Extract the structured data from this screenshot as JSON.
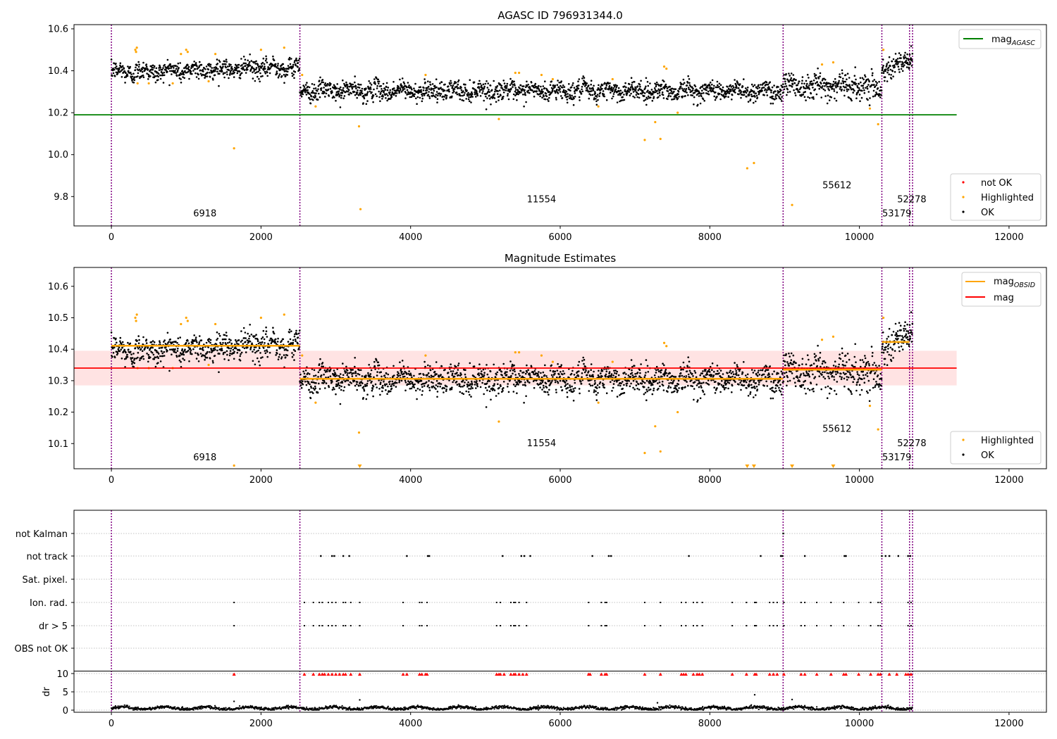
{
  "chart_data": [
    {
      "type": "scatter",
      "title": "AGASC ID 796931344.0",
      "xlim": [
        -500,
        12500
      ],
      "ylim": [
        9.66,
        10.62
      ],
      "x_ticks": [
        0,
        2000,
        4000,
        6000,
        8000,
        10000,
        12000
      ],
      "y_ticks": [
        9.8,
        10.0,
        10.2,
        10.4,
        10.6
      ],
      "grid": false,
      "mag_agasc": 10.19,
      "mag_agasc_x_range": [
        -500,
        11300
      ],
      "obsid_boundaries": [
        0,
        2520,
        8980,
        10300,
        10670,
        10710
      ],
      "segment_labels": [
        {
          "text": "6918",
          "x": 1250,
          "y": 9.705
        },
        {
          "text": "11554",
          "x": 5750,
          "y": 9.772
        },
        {
          "text": "55612",
          "x": 9700,
          "y": 9.84
        },
        {
          "text": "52278",
          "x": 10700,
          "y": 9.772
        },
        {
          "text": "53179",
          "x": 10500,
          "y": 9.705
        }
      ],
      "segments": [
        {
          "x0": 0,
          "x1": 2520,
          "center": 10.405,
          "spread": 0.022,
          "trend": 0.025
        },
        {
          "x0": 2520,
          "x1": 8980,
          "center": 10.305,
          "spread": 0.022,
          "trend": 0
        },
        {
          "x0": 8980,
          "x1": 10300,
          "center": 10.33,
          "spread": 0.03,
          "trend": -0.01
        },
        {
          "x0": 10300,
          "x1": 10710,
          "center": 10.43,
          "spread": 0.025,
          "trend": 0.06
        }
      ],
      "highlighted_points": [
        [
          320,
          10.5
        ],
        [
          330,
          10.49
        ],
        [
          340,
          10.51
        ],
        [
          350,
          10.34
        ],
        [
          500,
          10.34
        ],
        [
          820,
          10.34
        ],
        [
          930,
          10.48
        ],
        [
          1000,
          10.5
        ],
        [
          1020,
          10.49
        ],
        [
          1300,
          10.35
        ],
        [
          1390,
          10.48
        ],
        [
          1640,
          10.03
        ],
        [
          2000,
          10.5
        ],
        [
          2310,
          10.51
        ],
        [
          2550,
          10.38
        ],
        [
          2730,
          10.23
        ],
        [
          3310,
          10.135
        ],
        [
          3330,
          9.74
        ],
        [
          4200,
          10.38
        ],
        [
          5180,
          10.17
        ],
        [
          5400,
          10.39
        ],
        [
          5450,
          10.39
        ],
        [
          5750,
          10.38
        ],
        [
          5900,
          10.36
        ],
        [
          6510,
          10.23
        ],
        [
          6700,
          10.36
        ],
        [
          7130,
          10.07
        ],
        [
          7270,
          10.155
        ],
        [
          7340,
          10.075
        ],
        [
          7390,
          10.42
        ],
        [
          7420,
          10.41
        ],
        [
          7570,
          10.2
        ],
        [
          8500,
          9.935
        ],
        [
          8590,
          9.96
        ],
        [
          9100,
          9.76
        ],
        [
          9500,
          10.43
        ],
        [
          9650,
          10.44
        ],
        [
          10140,
          10.22
        ],
        [
          10250,
          10.145
        ],
        [
          10320,
          10.5
        ]
      ],
      "legend": {
        "upper": [
          "mag_AGASC"
        ],
        "lower": [
          "not OK",
          "Highlighted",
          "OK"
        ],
        "placement": "top-right / bottom-right"
      }
    },
    {
      "type": "scatter",
      "title": "Magnitude Estimates",
      "xlim": [
        -500,
        12500
      ],
      "ylim": [
        10.02,
        10.66
      ],
      "x_ticks": [
        0,
        2000,
        4000,
        6000,
        8000,
        10000,
        12000
      ],
      "y_ticks": [
        10.1,
        10.2,
        10.3,
        10.4,
        10.5,
        10.6
      ],
      "grid": false,
      "mag": 10.34,
      "mag_band": [
        10.285,
        10.395
      ],
      "mag_x_range": [
        -500,
        11300
      ],
      "mag_obsid": [
        {
          "x0": 0,
          "x1": 2520,
          "value": 10.411
        },
        {
          "x0": 2520,
          "x1": 8980,
          "value": 10.306
        },
        {
          "x0": 8980,
          "x1": 10300,
          "value": 10.335
        },
        {
          "x0": 10300,
          "x1": 10670,
          "value": 10.423
        }
      ],
      "segment_labels": [
        {
          "text": "6918",
          "x": 1250,
          "y": 10.047
        },
        {
          "text": "11554",
          "x": 5750,
          "y": 10.092
        },
        {
          "text": "55612",
          "x": 9700,
          "y": 10.137
        },
        {
          "text": "52278",
          "x": 10700,
          "y": 10.092
        },
        {
          "text": "53179",
          "x": 10500,
          "y": 10.047
        }
      ],
      "low_markers_x": [
        3320,
        8500,
        8590,
        9100,
        9650
      ],
      "legend": {
        "upper": [
          "mag_OBSID",
          "mag"
        ],
        "lower": [
          "Highlighted",
          "OK"
        ],
        "placement": "top-right / bottom-right"
      }
    },
    {
      "type": "scatter",
      "xlim": [
        -500,
        12500
      ],
      "x_ticks": [
        0,
        2000,
        4000,
        6000,
        8000,
        10000,
        12000
      ],
      "flag_categories": [
        "not Kalman",
        "not track",
        "Sat. pixel.",
        "Ion. rad.",
        "dr > 5",
        "OBS not OK"
      ],
      "dr_ylabel": "dr",
      "dr_ylim": [
        0,
        10
      ],
      "dr_ticks": [
        0,
        5,
        10
      ],
      "not_track_x": [
        2800,
        2950,
        2980,
        3100,
        3180,
        3950,
        4230,
        4250,
        5230,
        5480,
        5520,
        5600,
        6430,
        6650,
        6680,
        7720,
        8680,
        8950,
        8970,
        9270,
        9800,
        9820,
        10300,
        10350,
        10400,
        10520,
        10650,
        10680
      ],
      "not_kalman_x": [
        8980
      ],
      "ion_rad_x": [
        1640,
        2580,
        2700,
        2780,
        2820,
        2900,
        2950,
        3000,
        3100,
        3130,
        3200,
        3320,
        3900,
        4120,
        4150,
        4220,
        5150,
        5200,
        5340,
        5380,
        5400,
        5450,
        5550,
        6380,
        6550,
        6600,
        6620,
        7130,
        7340,
        7620,
        7680,
        7780,
        7830,
        7900,
        8300,
        8490,
        8600,
        8620,
        8800,
        8850,
        8900,
        8990,
        9220,
        9270,
        9430,
        9620,
        9790,
        9990,
        10150,
        10250,
        10280,
        10650,
        10690
      ],
      "dr_gt5_x": [
        1640,
        2580,
        2700,
        2780,
        2820,
        2900,
        2950,
        3000,
        3100,
        3130,
        3200,
        3320,
        3900,
        4120,
        4150,
        4220,
        5150,
        5200,
        5340,
        5380,
        5400,
        5450,
        5550,
        6380,
        6550,
        6600,
        6620,
        7130,
        7340,
        7620,
        7680,
        7780,
        7830,
        7900,
        8300,
        8490,
        8600,
        8620,
        8800,
        8850,
        8900,
        8990,
        9220,
        9270,
        9430,
        9620,
        9790,
        9990,
        10150,
        10250,
        10280,
        10650,
        10690
      ],
      "dr_high_x": [
        1640,
        2580,
        2700,
        2780,
        2820,
        2850,
        2900,
        2950,
        3000,
        3050,
        3100,
        3130,
        3200,
        3320,
        3900,
        3950,
        4120,
        4150,
        4200,
        4220,
        5150,
        5180,
        5200,
        5250,
        5340,
        5380,
        5400,
        5450,
        5500,
        5550,
        6380,
        6400,
        6550,
        6600,
        6620,
        7130,
        7340,
        7620,
        7650,
        7680,
        7780,
        7830,
        7860,
        7900,
        8300,
        8490,
        8600,
        8620,
        8800,
        8850,
        8900,
        8990,
        9220,
        9270,
        9430,
        9620,
        9790,
        9820,
        9990,
        10150,
        10250,
        10280,
        10400,
        10500,
        10620,
        10650,
        10690
      ],
      "dr_outliers": [
        [
          1640,
          2.4
        ],
        [
          3320,
          2.8
        ],
        [
          8600,
          4.2
        ],
        [
          9100,
          2.9
        ],
        [
          7300,
          2.0
        ]
      ]
    }
  ],
  "legend_text": {
    "mag_agasc_main": "mag",
    "mag_agasc_sub": "AGASC",
    "mag_obsid_main": "mag",
    "mag_obsid_sub": "OBSID",
    "mag": "mag",
    "not_ok": "not OK",
    "highlighted": "Highlighted",
    "ok": "OK"
  },
  "colors": {
    "ok": "#000000",
    "highlighted": "#ffa500",
    "not_ok": "#ff0000",
    "agasc_line": "#008000",
    "mag_line": "#ff0000",
    "mag_band": "#ffcccc",
    "obsid_line": "#ffa500",
    "boundary": "#800080",
    "grid": "#b0b0b0"
  }
}
